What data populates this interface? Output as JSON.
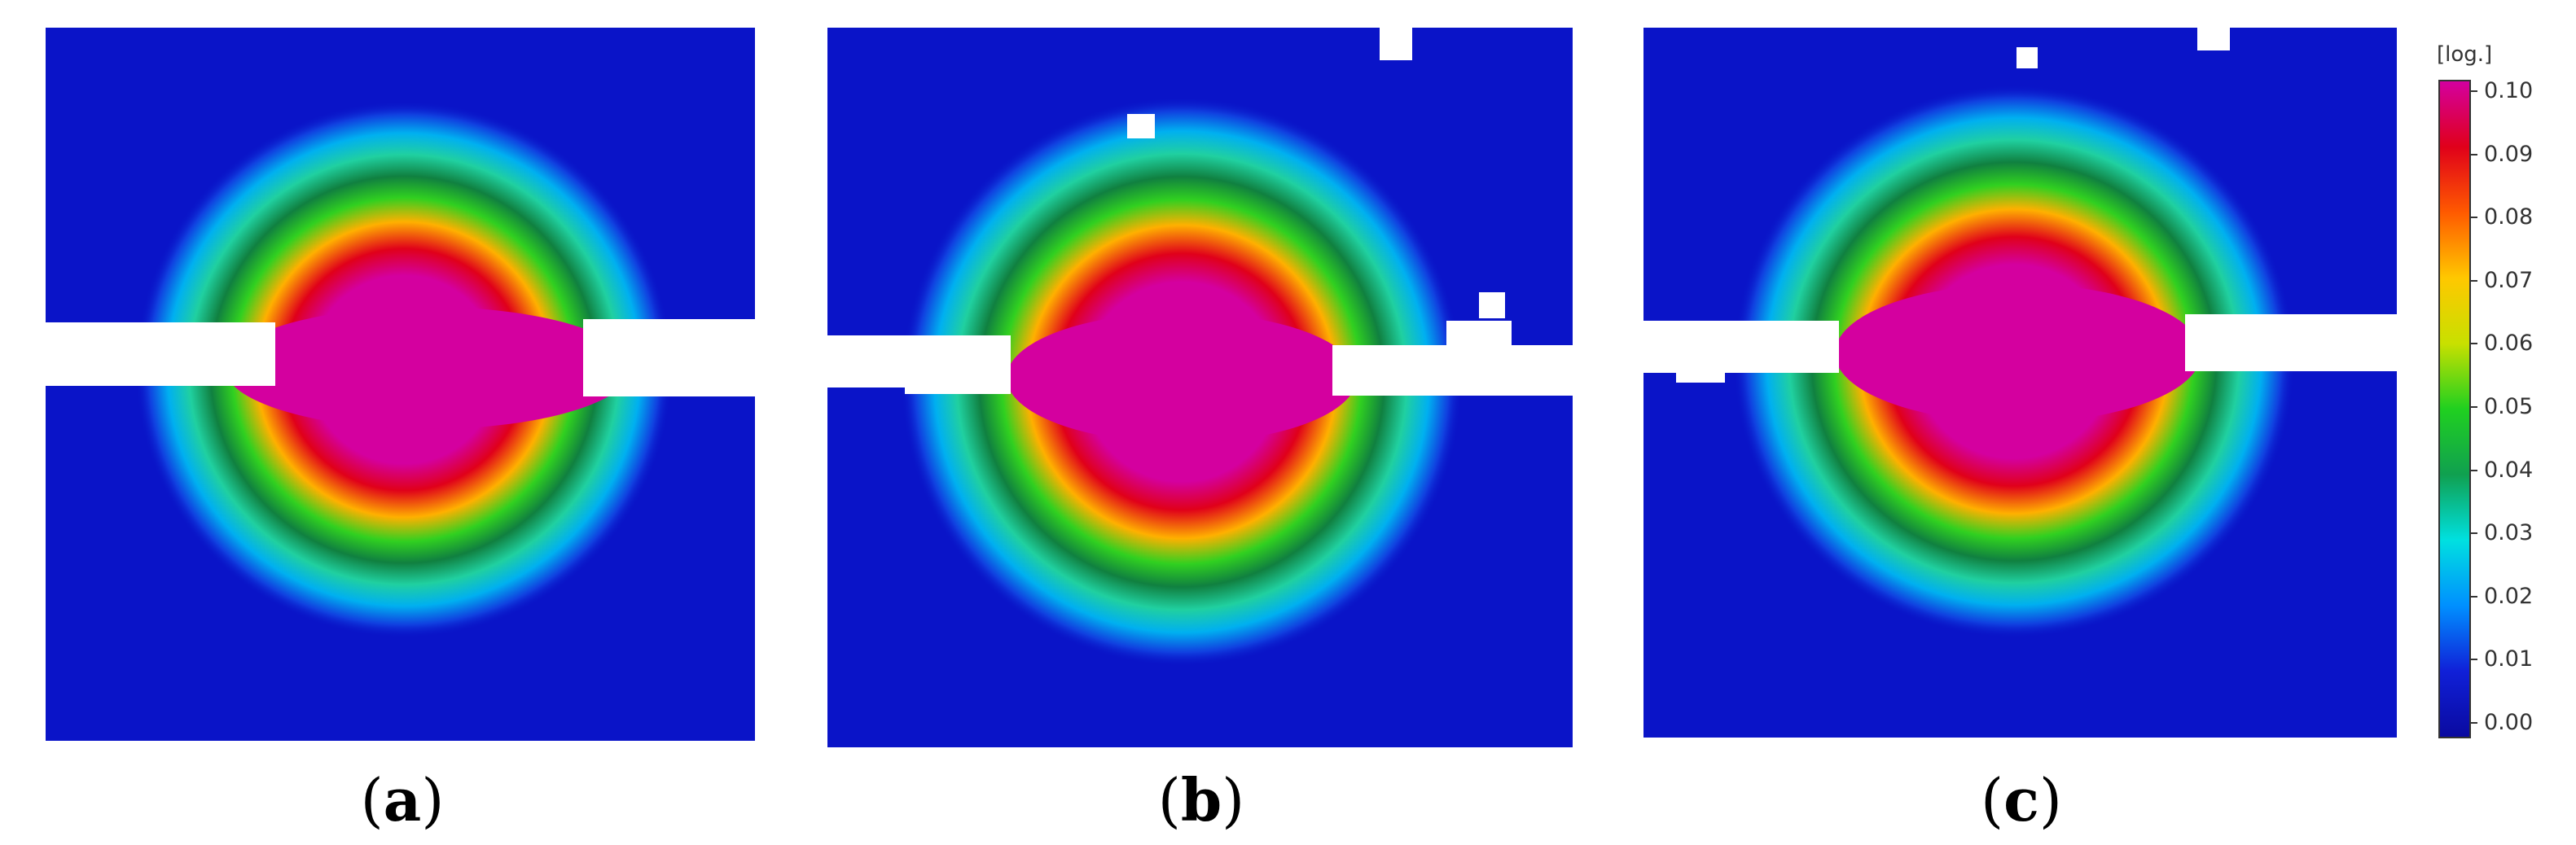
{
  "panels": [
    {
      "caption_open": "(",
      "letter": "a",
      "caption_close": ")"
    },
    {
      "caption_open": "(",
      "letter": "b",
      "caption_close": ")"
    },
    {
      "caption_open": "(",
      "letter": "c",
      "caption_close": ")"
    }
  ],
  "colorbar": {
    "unit": "[log.]",
    "ticks": [
      "0.10",
      "0.09",
      "0.08",
      "0.07",
      "0.06",
      "0.05",
      "0.04",
      "0.03",
      "0.02",
      "0.01",
      "0.00"
    ],
    "colors": {
      "max": "#d4009f",
      "high": "#e0001a",
      "orange": "#ff5a00",
      "yellow": "#ffc800",
      "green": "#20d020",
      "darkgreen": "#10a050",
      "cyan": "#00e0e0",
      "lightblue": "#0090ff",
      "blue": "#1020d8",
      "min": "#0a0aa0"
    }
  }
}
